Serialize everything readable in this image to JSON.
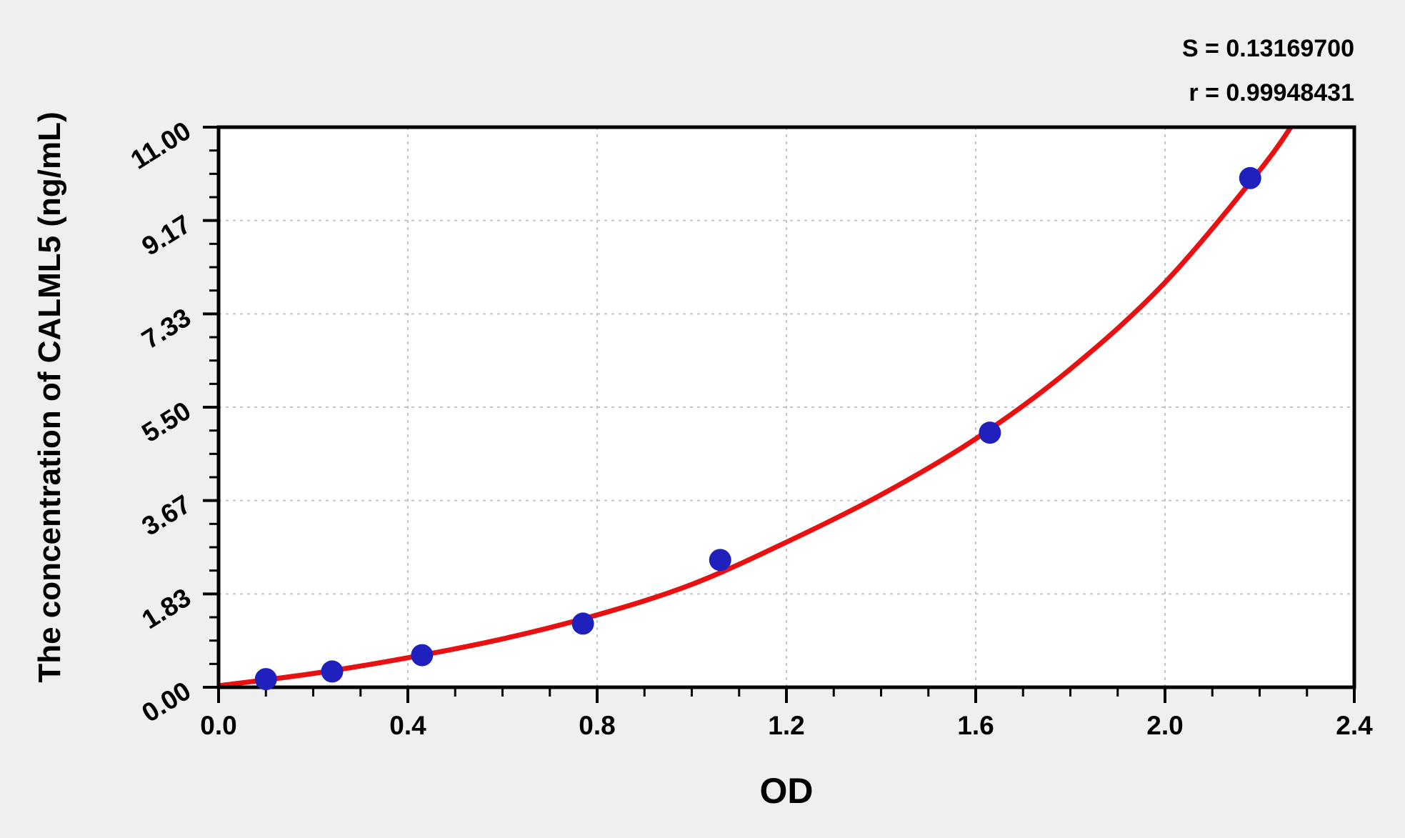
{
  "annotation": {
    "s_line": "S = 0.13169700",
    "r_line": "r = 0.99948431"
  },
  "chart_data": {
    "type": "scatter",
    "title": "",
    "xlabel": "OD",
    "ylabel": "The concentration of CALML5 (ng/mL)",
    "xlim": [
      0.0,
      2.4
    ],
    "ylim": [
      0.0,
      11.0
    ],
    "x_tick_labels": [
      "0.0",
      "0.4",
      "0.8",
      "1.2",
      "1.6",
      "2.0",
      "2.4"
    ],
    "y_tick_labels": [
      "0.00",
      "1.83",
      "3.67",
      "5.50",
      "7.33",
      "9.17",
      "11.00"
    ],
    "x_minor_per_major": 4,
    "y_minor_per_major": 4,
    "grid": "major-dashed",
    "legend": "none",
    "series": [
      {
        "name": "standard-points",
        "type": "scatter",
        "x": [
          0.1,
          0.24,
          0.43,
          0.77,
          1.06,
          1.63,
          2.18
        ],
        "y": [
          0.16,
          0.31,
          0.63,
          1.25,
          2.5,
          5.0,
          10.0
        ]
      },
      {
        "name": "fitted-curve",
        "type": "line",
        "x": [
          0.0,
          0.2,
          0.4,
          0.6,
          0.8,
          1.0,
          1.2,
          1.4,
          1.6,
          1.8,
          2.0,
          2.2,
          2.28
        ],
        "y": [
          0.03,
          0.27,
          0.58,
          0.95,
          1.42,
          2.02,
          2.85,
          3.78,
          4.88,
          6.25,
          7.95,
          10.15,
          11.2
        ]
      }
    ],
    "stats": {
      "S": "0.13169700",
      "r": "0.99948431"
    },
    "colors": {
      "curve": "#e81111",
      "points": "#2020bd",
      "grid": "#c5c5c5",
      "axis": "#000000",
      "plot_bg": "#ffffff",
      "page_bg": "#efefef",
      "text": "#000000"
    }
  }
}
